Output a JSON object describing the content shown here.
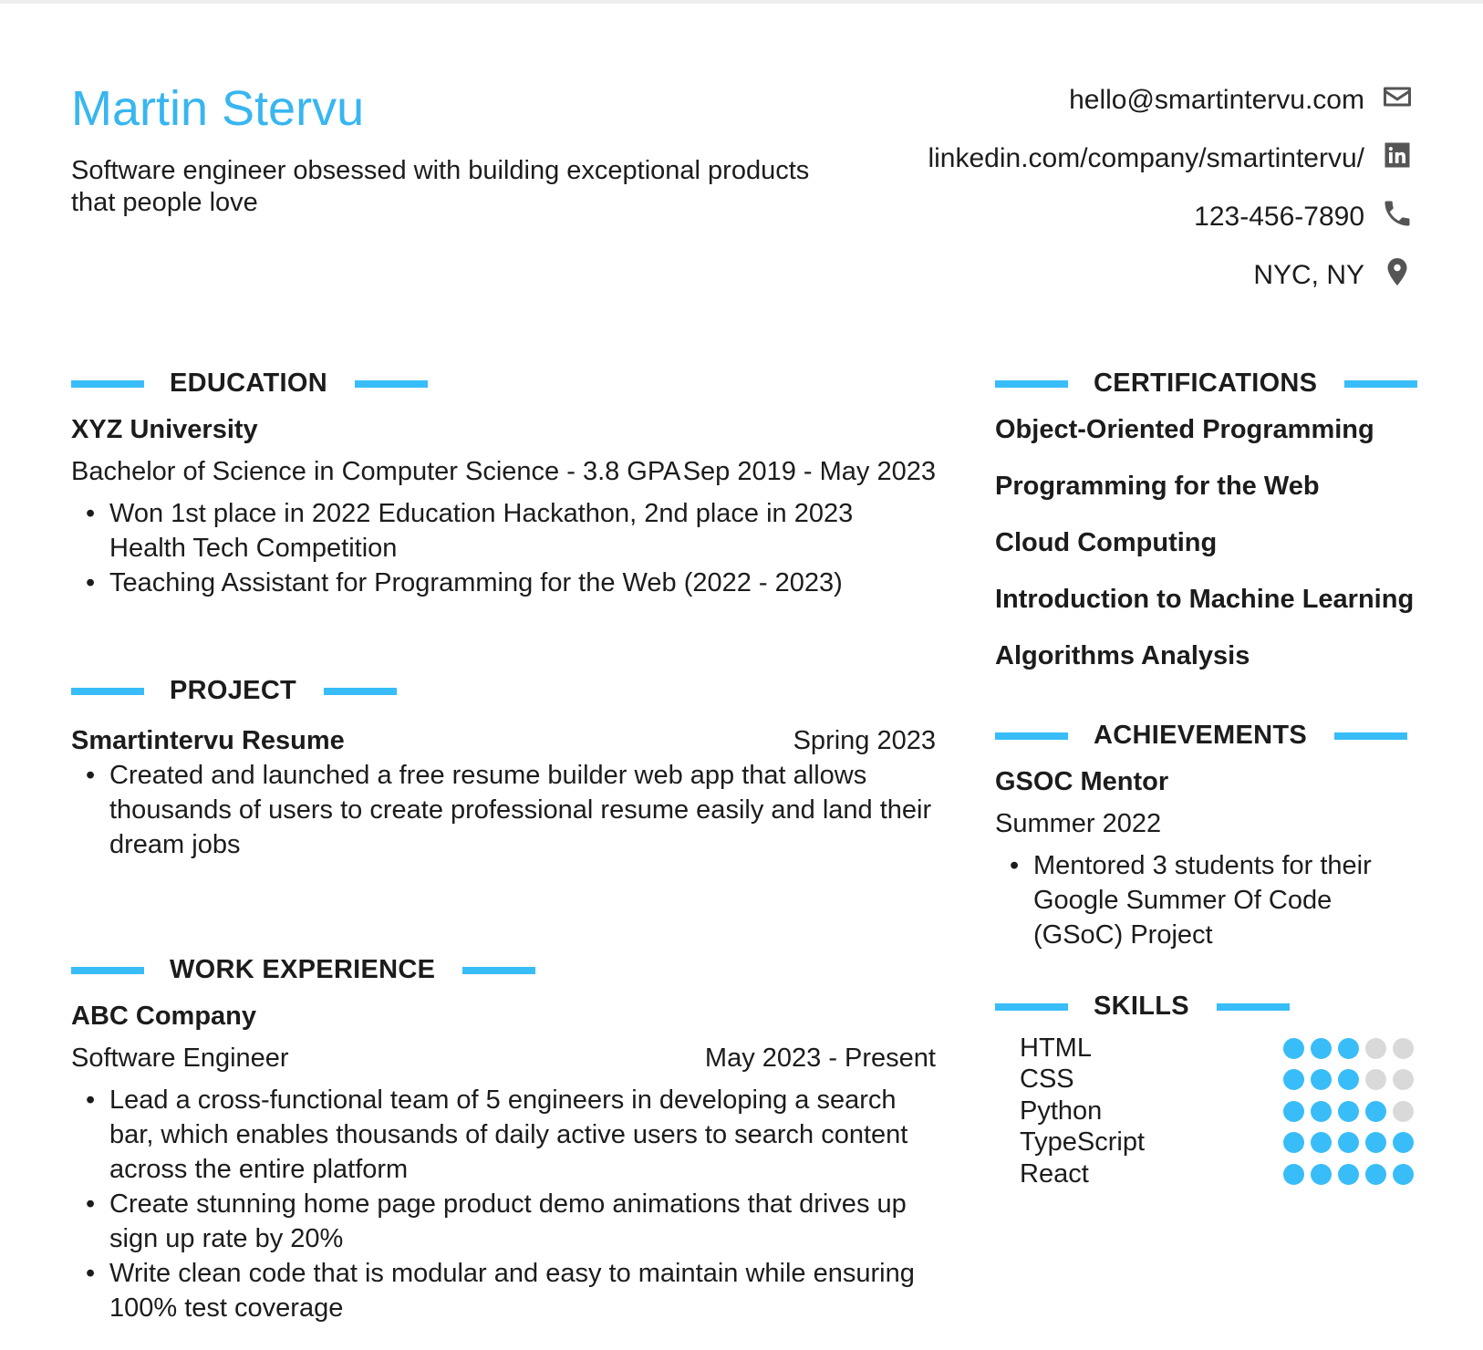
{
  "header": {
    "name": "Martin Stervu",
    "tagline": "Software engineer obsessed with building exceptional products that people love",
    "contacts": [
      {
        "text": "hello@smartintervu.com",
        "icon": "envelope-icon"
      },
      {
        "text": "linkedin.com/company/smartintervu/",
        "icon": "linkedin-icon"
      },
      {
        "text": "123-456-7890",
        "icon": "phone-icon"
      },
      {
        "text": "NYC, NY",
        "icon": "map-pin-icon"
      }
    ]
  },
  "colors": {
    "accent": "#38bdf8",
    "name": "#38b6f0",
    "inactive_dot": "#d9d9d9"
  },
  "education": {
    "title": "EDUCATION",
    "school": "XYZ University",
    "degree": "Bachelor of Science in Computer Science - 3.8 GPA",
    "dates": "Sep 2019 - May 2023",
    "bullets": [
      "Won 1st place in 2022 Education Hackathon, 2nd place in 2023 Health Tech Competition",
      "Teaching Assistant for Programming for the Web (2022 - 2023)"
    ]
  },
  "project": {
    "title": "PROJECT",
    "name": "Smartintervu Resume",
    "dates": "Spring 2023",
    "bullets": [
      "Created and launched a free resume builder web app that allows thousands of users to create professional resume easily and land their dream jobs"
    ]
  },
  "work": {
    "title": "WORK EXPERIENCE",
    "company": "ABC Company",
    "role": "Software Engineer",
    "dates": "May 2023 - Present",
    "bullets": [
      "Lead a cross-functional team of 5 engineers in developing a search bar, which enables thousands of daily active users to search content across the entire platform",
      "Create stunning home page product demo animations that drives up sign up rate by 20%",
      "Write clean code that is modular and easy to maintain while ensuring 100% test coverage"
    ]
  },
  "certifications": {
    "title": "CERTIFICATIONS",
    "items": [
      "Object-Oriented Programming",
      "Programming for the Web",
      "Cloud Computing",
      "Introduction to Machine Learning",
      "Algorithms Analysis"
    ]
  },
  "achievements": {
    "title": "ACHIEVEMENTS",
    "name": "GSOC Mentor",
    "date": "Summer 2022",
    "bullets": [
      "Mentored 3 students for their Google Summer Of Code (GSoC) Project"
    ]
  },
  "skills": {
    "title": "SKILLS",
    "max": 5,
    "items": [
      {
        "name": "HTML",
        "level": 3
      },
      {
        "name": "CSS",
        "level": 3
      },
      {
        "name": "Python",
        "level": 4
      },
      {
        "name": "TypeScript",
        "level": 5
      },
      {
        "name": "React",
        "level": 5
      }
    ]
  }
}
